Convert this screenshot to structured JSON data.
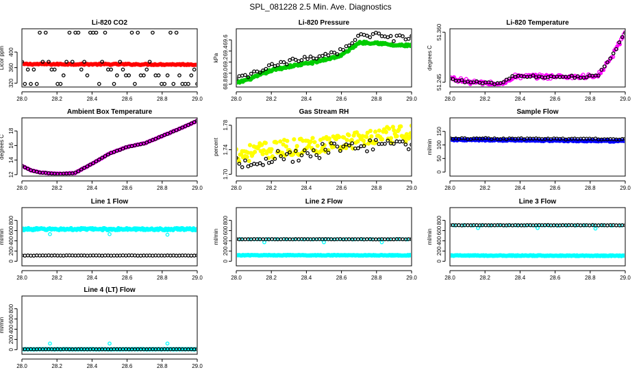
{
  "figure": {
    "title": "SPL_081228  2.5 Min. Ave. Diagnostics"
  },
  "colors": {
    "black": "#000000",
    "red": "#ff0000",
    "green": "#00cc00",
    "magenta": "#ff00ff",
    "yellow": "#ffff00",
    "blue": "#0000ff",
    "cyan": "#00ffff"
  },
  "chart_data": [
    {
      "id": "co2",
      "type": "scatter",
      "title": "Li-820 CO2",
      "ylabel": "Licor ppm",
      "xlim": [
        28.0,
        29.0
      ],
      "ylim": [
        310,
        460
      ],
      "xticks": [
        28.0,
        28.2,
        28.4,
        28.6,
        28.8,
        29.0
      ],
      "yticks": [
        320,
        360,
        400
      ],
      "xtick_labels": [
        "28.0",
        "28.2",
        "28.4",
        "28.6",
        "28.8",
        "29.0"
      ],
      "ytick_labels": [
        "320",
        "360",
        "400"
      ],
      "series": [
        {
          "name": "red",
          "color": "#ff0000",
          "marker": "dense",
          "gen": "flat",
          "n": 150,
          "y0": 369,
          "y1": 368,
          "noise": 1.5
        },
        {
          "name": "black",
          "color": "#000000",
          "marker": "open",
          "gen": "levels",
          "n": 60,
          "levels": [
            318,
            340,
            355,
            375,
            450
          ]
        }
      ]
    },
    {
      "id": "pressure",
      "type": "scatter",
      "title": "Li-820 Pressure",
      "ylabel": "kPa",
      "xlim": [
        28.0,
        29.0
      ],
      "ylim": [
        68.75,
        69.8
      ],
      "xticks": [
        28.0,
        28.2,
        28.4,
        28.6,
        28.8,
        29.0
      ],
      "yticks": [
        68.8,
        69.0,
        69.2,
        69.4,
        69.6
      ],
      "xtick_labels": [
        "28.0",
        "28.2",
        "28.4",
        "28.6",
        "28.8",
        "29.0"
      ],
      "ytick_labels": [
        "68.8",
        "69.0",
        "69.2",
        "69.4",
        "69.6"
      ],
      "series": [
        {
          "name": "green",
          "color": "#00cc00",
          "marker": "dense",
          "gen": "path",
          "n": 160,
          "noise": 0.02,
          "path": [
            [
              28.0,
              68.82
            ],
            [
              28.1,
              68.92
            ],
            [
              28.2,
              69.05
            ],
            [
              28.3,
              69.12
            ],
            [
              28.45,
              69.2
            ],
            [
              28.6,
              69.32
            ],
            [
              28.7,
              69.55
            ],
            [
              28.8,
              69.55
            ],
            [
              28.9,
              69.5
            ],
            [
              29.0,
              69.5
            ]
          ]
        },
        {
          "name": "black",
          "color": "#000000",
          "marker": "open",
          "gen": "path",
          "n": 60,
          "noise": 0.05,
          "path": [
            [
              28.0,
              68.88
            ],
            [
              28.1,
              69.0
            ],
            [
              28.2,
              69.12
            ],
            [
              28.3,
              69.2
            ],
            [
              28.45,
              69.3
            ],
            [
              28.6,
              69.4
            ],
            [
              28.7,
              69.68
            ],
            [
              28.8,
              69.68
            ],
            [
              28.9,
              69.62
            ],
            [
              29.0,
              69.66
            ]
          ]
        }
      ]
    },
    {
      "id": "temperature",
      "type": "scatter",
      "title": "Li-820 Temperature",
      "ylabel": "degrees C",
      "xlim": [
        28.0,
        29.0
      ],
      "ylim": [
        51.234,
        51.368
      ],
      "xticks": [
        28.0,
        28.2,
        28.4,
        28.6,
        28.8,
        29.0
      ],
      "yticks": [
        51.245,
        51.36
      ],
      "xtick_labels": [
        "28.0",
        "28.2",
        "28.4",
        "28.6",
        "28.8",
        "29.0"
      ],
      "ytick_labels": [
        "51.245",
        "51.360"
      ],
      "series": [
        {
          "name": "magenta",
          "color": "#ff00ff",
          "marker": "mixed",
          "gen": "path",
          "n": 130,
          "noise": 0.005,
          "path": [
            [
              28.0,
              51.255
            ],
            [
              28.12,
              51.245
            ],
            [
              28.3,
              51.24
            ],
            [
              28.36,
              51.258
            ],
            [
              28.84,
              51.258
            ],
            [
              28.92,
              51.3
            ],
            [
              29.0,
              51.36
            ]
          ]
        },
        {
          "name": "black",
          "color": "#000000",
          "marker": "open",
          "gen": "path",
          "n": 60,
          "noise": 0.003,
          "path": [
            [
              28.0,
              51.252
            ],
            [
              28.12,
              51.245
            ],
            [
              28.3,
              51.242
            ],
            [
              28.36,
              51.258
            ],
            [
              28.84,
              51.258
            ],
            [
              28.92,
              51.3
            ],
            [
              29.0,
              51.36
            ]
          ]
        }
      ]
    },
    {
      "id": "ambient",
      "type": "scatter",
      "title": "Ambient Box Temperature",
      "ylabel": "degrees C",
      "xlim": [
        28.0,
        29.0
      ],
      "ylim": [
        11.8,
        19.8
      ],
      "xticks": [
        28.0,
        28.2,
        28.4,
        28.6,
        28.8,
        29.0
      ],
      "yticks": [
        12,
        14,
        16,
        18
      ],
      "xtick_labels": [
        "28.0",
        "28.2",
        "28.4",
        "28.6",
        "28.8",
        "29.0"
      ],
      "ytick_labels": [
        "12",
        "14",
        "16",
        "18"
      ],
      "series": [
        {
          "name": "magenta",
          "color": "#ff00ff",
          "marker": "dense",
          "gen": "path",
          "n": 140,
          "noise": 0.04,
          "path": [
            [
              28.0,
              13.2
            ],
            [
              28.05,
              12.6
            ],
            [
              28.1,
              12.3
            ],
            [
              28.2,
              12.1
            ],
            [
              28.3,
              12.2
            ],
            [
              28.4,
              13.5
            ],
            [
              28.5,
              14.9
            ],
            [
              28.6,
              15.8
            ],
            [
              28.7,
              16.3
            ],
            [
              28.8,
              17.3
            ],
            [
              28.9,
              18.3
            ],
            [
              29.0,
              19.4
            ]
          ]
        },
        {
          "name": "black",
          "color": "#000000",
          "marker": "open",
          "gen": "path",
          "n": 60,
          "noise": 0.02,
          "path": [
            [
              28.0,
              13.2
            ],
            [
              28.05,
              12.6
            ],
            [
              28.1,
              12.3
            ],
            [
              28.2,
              12.1
            ],
            [
              28.3,
              12.2
            ],
            [
              28.4,
              13.5
            ],
            [
              28.5,
              14.9
            ],
            [
              28.6,
              15.8
            ],
            [
              28.7,
              16.3
            ],
            [
              28.8,
              17.3
            ],
            [
              28.9,
              18.3
            ],
            [
              29.0,
              19.4
            ]
          ]
        }
      ]
    },
    {
      "id": "rh",
      "type": "scatter",
      "title": "Gas Stream RH",
      "ylabel": "percent",
      "xlim": [
        28.0,
        29.0
      ],
      "ylim": [
        1.697,
        1.792
      ],
      "xticks": [
        28.0,
        28.2,
        28.4,
        28.6,
        28.8,
        29.0
      ],
      "yticks": [
        1.7,
        1.74,
        1.78
      ],
      "xtick_labels": [
        "28.0",
        "28.2",
        "28.4",
        "28.6",
        "28.8",
        "29.0"
      ],
      "ytick_labels": [
        "1.70",
        "1.74",
        "1.78"
      ],
      "series": [
        {
          "name": "yellow",
          "color": "#ffff00",
          "marker": "filled",
          "gen": "path",
          "n": 180,
          "noise": 0.014,
          "path": [
            [
              28.0,
              1.733
            ],
            [
              28.5,
              1.75
            ],
            [
              29.0,
              1.768
            ]
          ]
        },
        {
          "name": "black",
          "color": "#000000",
          "marker": "open",
          "gen": "path",
          "n": 60,
          "noise": 0.012,
          "path": [
            [
              28.0,
              1.72
            ],
            [
              28.5,
              1.738
            ],
            [
              29.0,
              1.752
            ]
          ]
        }
      ]
    },
    {
      "id": "sample",
      "type": "scatter",
      "title": "Sample Flow",
      "ylabel": "ml/min",
      "xlim": [
        28.0,
        29.0
      ],
      "ylim": [
        -15,
        200
      ],
      "xticks": [
        28.0,
        28.2,
        28.4,
        28.6,
        28.8,
        29.0
      ],
      "yticks": [
        0,
        50,
        100,
        150
      ],
      "xtick_labels": [
        "28.0",
        "28.2",
        "28.4",
        "28.6",
        "28.8",
        "29.0"
      ],
      "ytick_labels": [
        "0",
        "50",
        "100",
        "150"
      ],
      "series": [
        {
          "name": "blue",
          "color": "#0000ff",
          "marker": "dense",
          "gen": "flat",
          "n": 170,
          "y0": 119,
          "y1": 114,
          "noise": 2.2
        },
        {
          "name": "black",
          "color": "#000000",
          "marker": "open",
          "gen": "flat",
          "n": 60,
          "y0": 124,
          "y1": 121,
          "noise": 2.2
        }
      ]
    },
    {
      "id": "line1",
      "type": "scatter",
      "title": "Line 1 Flow",
      "ylabel": "ml/min",
      "xlim": [
        28.0,
        29.0
      ],
      "ylim": [
        -90,
        1050
      ],
      "xticks": [
        28.0,
        28.2,
        28.4,
        28.6,
        28.8,
        29.0
      ],
      "yticks": [
        0,
        200,
        400,
        600,
        800
      ],
      "xtick_labels": [
        "28.0",
        "28.2",
        "28.4",
        "28.6",
        "28.8",
        "29.0"
      ],
      "ytick_labels": [
        "0",
        "200",
        "400",
        "600",
        "800"
      ],
      "series": [
        {
          "name": "cyan-band",
          "color": "#00ffff",
          "marker": "dense",
          "gen": "flat",
          "n": 190,
          "y0": 628,
          "y1": 628,
          "noise": 20
        },
        {
          "name": "cyan-outliers",
          "color": "#00ffff",
          "marker": "open",
          "gen": "points",
          "x": [
            28.16,
            28.5,
            28.83
          ],
          "y": [
            530,
            530,
            520
          ]
        },
        {
          "name": "black",
          "color": "#000000",
          "marker": "open",
          "gen": "flat",
          "n": 60,
          "y0": 112,
          "y1": 112,
          "noise": 3
        }
      ]
    },
    {
      "id": "line2",
      "type": "scatter",
      "title": "Line 2 Flow",
      "ylabel": "ml/min",
      "xlim": [
        28.0,
        29.0
      ],
      "ylim": [
        -90,
        1050
      ],
      "xticks": [
        28.0,
        28.2,
        28.4,
        28.6,
        28.8,
        29.0
      ],
      "yticks": [
        0,
        200,
        400,
        600,
        800
      ],
      "xtick_labels": [
        "28.0",
        "28.2",
        "28.4",
        "28.6",
        "28.8",
        "29.0"
      ],
      "ytick_labels": [
        "0",
        "200",
        "400",
        "600",
        "800"
      ],
      "series": [
        {
          "name": "cyan-band",
          "color": "#00ffff",
          "marker": "dense",
          "gen": "flat",
          "n": 190,
          "y0": 118,
          "y1": 116,
          "noise": 6
        },
        {
          "name": "cyan-upper",
          "color": "#00ffff",
          "marker": "open",
          "gen": "flat",
          "n": 40,
          "y0": 432,
          "y1": 430,
          "noise": 4
        },
        {
          "name": "cyan-outliers",
          "color": "#00ffff",
          "marker": "open",
          "gen": "points",
          "x": [
            28.16,
            28.5,
            28.83
          ],
          "y": [
            372,
            372,
            372
          ]
        },
        {
          "name": "black",
          "color": "#000000",
          "marker": "open",
          "gen": "flat",
          "n": 60,
          "y0": 432,
          "y1": 430,
          "noise": 3
        }
      ]
    },
    {
      "id": "line3",
      "type": "scatter",
      "title": "Line 3 Flow",
      "ylabel": "ml/min",
      "xlim": [
        28.0,
        29.0
      ],
      "ylim": [
        -90,
        1050
      ],
      "xticks": [
        28.0,
        28.2,
        28.4,
        28.6,
        28.8,
        29.0
      ],
      "yticks": [
        0,
        200,
        400,
        600,
        800
      ],
      "xtick_labels": [
        "28.0",
        "28.2",
        "28.4",
        "28.6",
        "28.8",
        "29.0"
      ],
      "ytick_labels": [
        "0",
        "200",
        "400",
        "600",
        "800"
      ],
      "series": [
        {
          "name": "cyan-band",
          "color": "#00ffff",
          "marker": "dense",
          "gen": "flat",
          "n": 190,
          "y0": 112,
          "y1": 108,
          "noise": 7
        },
        {
          "name": "cyan-upper",
          "color": "#00ffff",
          "marker": "open",
          "gen": "flat",
          "n": 40,
          "y0": 702,
          "y1": 702,
          "noise": 4
        },
        {
          "name": "cyan-outliers",
          "color": "#00ffff",
          "marker": "open",
          "gen": "points",
          "x": [
            28.16,
            28.5,
            28.83
          ],
          "y": [
            650,
            650,
            640
          ]
        },
        {
          "name": "black",
          "color": "#000000",
          "marker": "open",
          "gen": "flat",
          "n": 60,
          "y0": 705,
          "y1": 705,
          "noise": 3
        }
      ]
    },
    {
      "id": "line4",
      "type": "scatter",
      "title": "Line 4 (LT) Flow",
      "ylabel": "ml/min",
      "xlim": [
        28.0,
        29.0
      ],
      "ylim": [
        -90,
        1050
      ],
      "xticks": [
        28.0,
        28.2,
        28.4,
        28.6,
        28.8,
        29.0
      ],
      "yticks": [
        0,
        200,
        400,
        600,
        800
      ],
      "xtick_labels": [
        "28.0",
        "28.2",
        "28.4",
        "28.6",
        "28.8",
        "29.0"
      ],
      "ytick_labels": [
        "0",
        "200",
        "400",
        "600",
        "800"
      ],
      "series": [
        {
          "name": "cyan-band",
          "color": "#00ffff",
          "marker": "dense",
          "gen": "flat",
          "n": 150,
          "y0": 8,
          "y1": 8,
          "noise": 3
        },
        {
          "name": "cyan-outliers",
          "color": "#00ffff",
          "marker": "open",
          "gen": "points",
          "x": [
            28.16,
            28.5,
            28.83
          ],
          "y": [
            120,
            120,
            120
          ]
        },
        {
          "name": "black",
          "color": "#000000",
          "marker": "open",
          "gen": "flat",
          "n": 60,
          "y0": 8,
          "y1": 8,
          "noise": 1.5
        }
      ]
    }
  ]
}
